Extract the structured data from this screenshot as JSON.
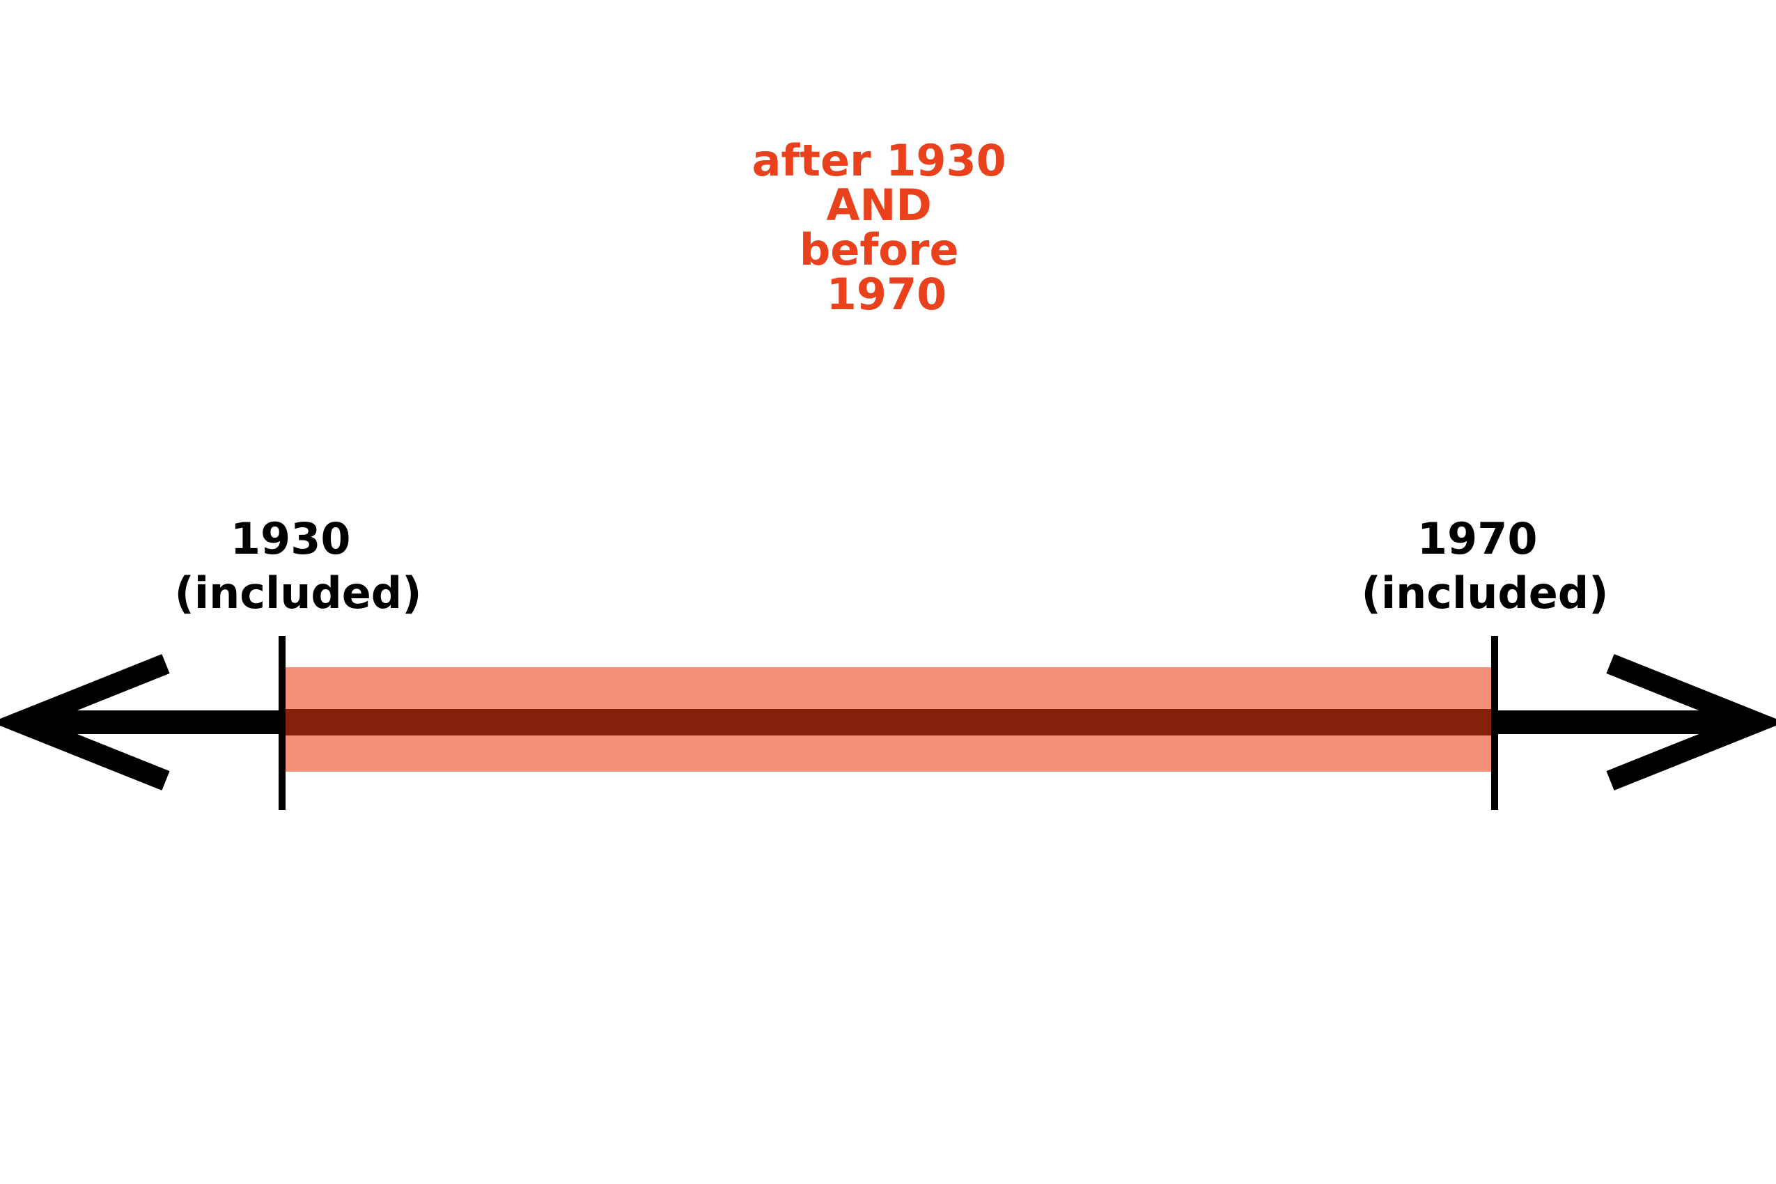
{
  "title": {
    "lines": [
      "after 1930",
      "AND",
      "before",
      "1970"
    ],
    "color": "#E8411B"
  },
  "start": {
    "year": "1930",
    "note": "(included)"
  },
  "end": {
    "year": "1970",
    "note": "(included)"
  },
  "colors": {
    "axis": "#000000",
    "range_band": "#F29177",
    "range_line": "#85200A",
    "text": "#000000"
  },
  "range": {
    "from": 1930,
    "to": 1970,
    "start_inclusive": true,
    "end_inclusive": true
  }
}
